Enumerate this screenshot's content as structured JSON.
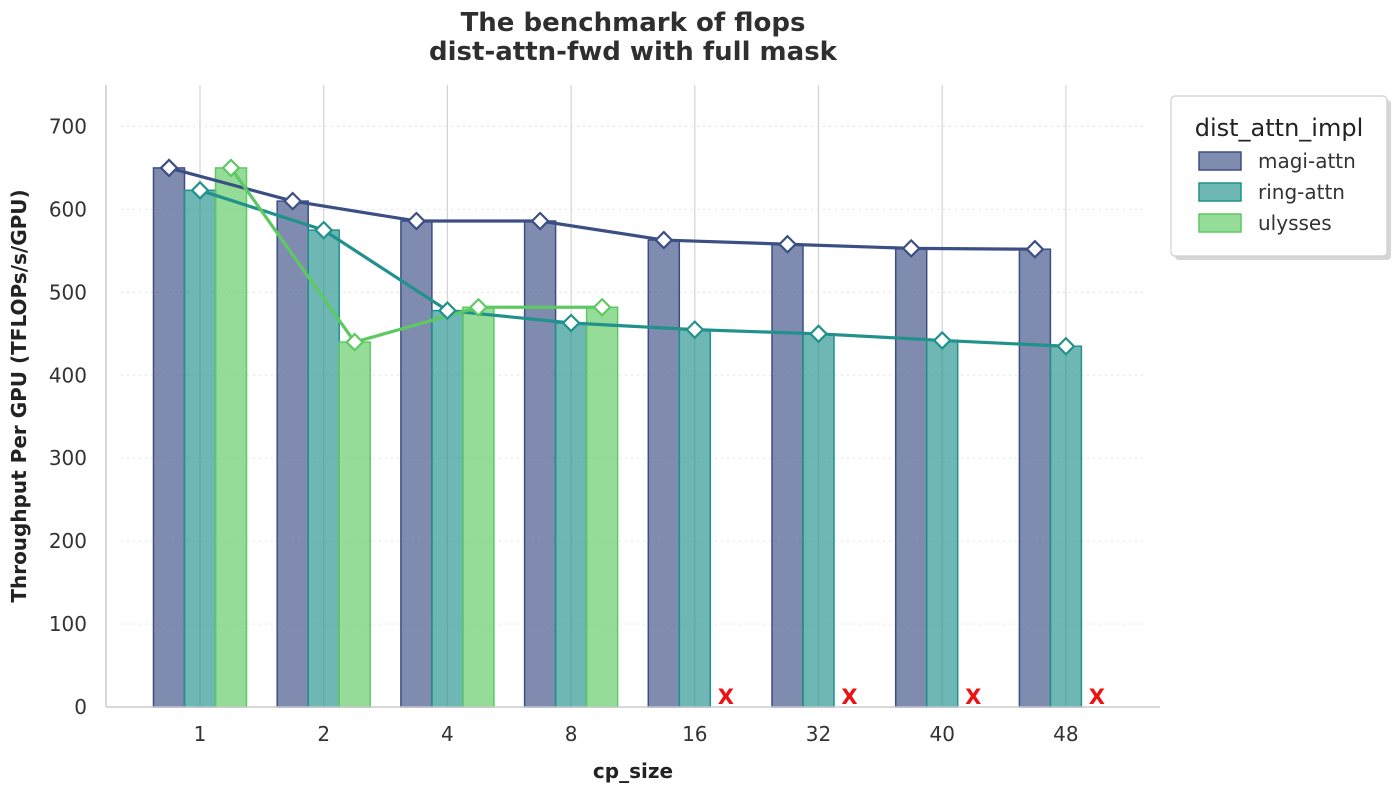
{
  "chart_data": {
    "type": "bar",
    "title_line1": "The benchmark of flops",
    "title_line2": "dist-attn-fwd with full mask",
    "xlabel": "cp_size",
    "ylabel": "Throughput Per GPU (TFLOPs/s/GPU)",
    "categories": [
      "1",
      "2",
      "4",
      "8",
      "16",
      "32",
      "40",
      "48"
    ],
    "ylim": [
      0,
      750
    ],
    "yticks": [
      "0",
      "100",
      "200",
      "300",
      "400",
      "500",
      "600",
      "700"
    ],
    "legend_title": "dist_attn_impl",
    "legend_position": "top-right outside",
    "grid": "vertical lines at categories, dotted horizontal",
    "overlay": "line with diamond markers per series",
    "missing_marker": "X",
    "series": [
      {
        "name": "magi-attn",
        "color": "#3b4f85",
        "values": [
          650,
          610,
          586,
          586,
          563,
          558,
          553,
          552
        ]
      },
      {
        "name": "ring-attn",
        "color": "#21918c",
        "values": [
          623,
          575,
          478,
          463,
          455,
          450,
          442,
          435
        ]
      },
      {
        "name": "ulysses",
        "color": "#5ec962",
        "values": [
          650,
          440,
          482,
          482,
          null,
          null,
          null,
          null
        ]
      }
    ]
  }
}
